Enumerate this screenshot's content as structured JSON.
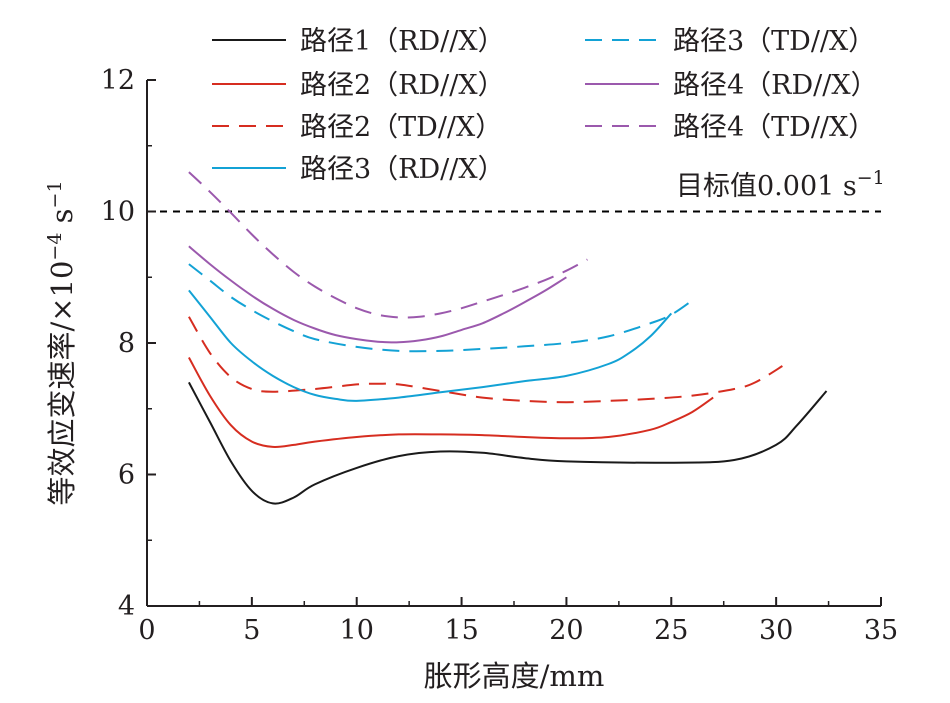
{
  "chart_data": {
    "type": "line",
    "xlabel": "胀形高度/mm",
    "ylabel_main": "等效应变速率/×10",
    "ylabel_exp": "−4",
    "ylabel_unit": " s",
    "ylabel_unit_exp": "−1",
    "xlim": [
      0,
      35
    ],
    "ylim": [
      4,
      12
    ],
    "x_ticks": [
      0,
      5,
      10,
      15,
      20,
      25,
      30,
      35
    ],
    "y_ticks": [
      4,
      6,
      8,
      10,
      12
    ],
    "grid": false,
    "legend_position": "top",
    "reference_line": {
      "y": 10,
      "label": "目标值0.001 s",
      "label_exp": "−1",
      "color": "#000000",
      "dash": "dashed"
    },
    "series": [
      {
        "name": "路径1（RD//X）",
        "color": "#1a1a1a",
        "dash": "solid",
        "points": [
          [
            2,
            7.4
          ],
          [
            3,
            6.8
          ],
          [
            4,
            6.2
          ],
          [
            5,
            5.75
          ],
          [
            6,
            5.56
          ],
          [
            7,
            5.65
          ],
          [
            8,
            5.85
          ],
          [
            10,
            6.1
          ],
          [
            12,
            6.28
          ],
          [
            14,
            6.35
          ],
          [
            16,
            6.33
          ],
          [
            18,
            6.25
          ],
          [
            20,
            6.2
          ],
          [
            25,
            6.18
          ],
          [
            28,
            6.22
          ],
          [
            30,
            6.45
          ],
          [
            31,
            6.75
          ],
          [
            32.4,
            7.27
          ]
        ]
      },
      {
        "name": "路径2（RD//X）",
        "color": "#d62d20",
        "dash": "solid",
        "points": [
          [
            2,
            7.78
          ],
          [
            3,
            7.2
          ],
          [
            4,
            6.75
          ],
          [
            5,
            6.5
          ],
          [
            6,
            6.42
          ],
          [
            7,
            6.45
          ],
          [
            8,
            6.5
          ],
          [
            10,
            6.57
          ],
          [
            12,
            6.61
          ],
          [
            14,
            6.61
          ],
          [
            16,
            6.6
          ],
          [
            18,
            6.57
          ],
          [
            20,
            6.55
          ],
          [
            22,
            6.57
          ],
          [
            24,
            6.68
          ],
          [
            25,
            6.8
          ],
          [
            26,
            6.95
          ],
          [
            27,
            7.17
          ]
        ]
      },
      {
        "name": "路径2（TD//X）",
        "color": "#d62d20",
        "dash": "dashed",
        "points": [
          [
            2,
            8.4
          ],
          [
            3,
            7.85
          ],
          [
            4,
            7.48
          ],
          [
            5,
            7.3
          ],
          [
            6,
            7.26
          ],
          [
            8,
            7.3
          ],
          [
            10,
            7.37
          ],
          [
            11,
            7.38
          ],
          [
            12,
            7.37
          ],
          [
            14,
            7.27
          ],
          [
            16,
            7.17
          ],
          [
            18,
            7.12
          ],
          [
            20,
            7.1
          ],
          [
            22,
            7.12
          ],
          [
            24,
            7.15
          ],
          [
            26,
            7.2
          ],
          [
            28,
            7.3
          ],
          [
            29,
            7.4
          ],
          [
            30.3,
            7.65
          ]
        ]
      },
      {
        "name": "路径3（RD//X）",
        "color": "#13a2d5",
        "dash": "solid",
        "points": [
          [
            2,
            8.8
          ],
          [
            3,
            8.4
          ],
          [
            4,
            8.0
          ],
          [
            5,
            7.72
          ],
          [
            6,
            7.5
          ],
          [
            7,
            7.33
          ],
          [
            8,
            7.21
          ],
          [
            9,
            7.15
          ],
          [
            10,
            7.12
          ],
          [
            12,
            7.17
          ],
          [
            14,
            7.25
          ],
          [
            16,
            7.33
          ],
          [
            18,
            7.42
          ],
          [
            20,
            7.5
          ],
          [
            22,
            7.68
          ],
          [
            23,
            7.85
          ],
          [
            24,
            8.1
          ],
          [
            25,
            8.45
          ]
        ]
      },
      {
        "name": "路径3（TD//X）",
        "color": "#13a2d5",
        "dash": "dashed",
        "points": [
          [
            2,
            9.2
          ],
          [
            3,
            8.95
          ],
          [
            4,
            8.7
          ],
          [
            5,
            8.5
          ],
          [
            6,
            8.33
          ],
          [
            7,
            8.18
          ],
          [
            8,
            8.06
          ],
          [
            10,
            7.94
          ],
          [
            12,
            7.88
          ],
          [
            14,
            7.88
          ],
          [
            16,
            7.91
          ],
          [
            18,
            7.95
          ],
          [
            20,
            8.0
          ],
          [
            22,
            8.1
          ],
          [
            24,
            8.3
          ],
          [
            25,
            8.43
          ],
          [
            26.1,
            8.67
          ]
        ]
      },
      {
        "name": "路径4（RD//X）",
        "color": "#9b59ad",
        "dash": "solid",
        "points": [
          [
            2,
            9.47
          ],
          [
            3,
            9.2
          ],
          [
            4,
            8.95
          ],
          [
            5,
            8.72
          ],
          [
            6,
            8.52
          ],
          [
            7,
            8.35
          ],
          [
            8,
            8.22
          ],
          [
            9,
            8.12
          ],
          [
            10,
            8.06
          ],
          [
            11,
            8.02
          ],
          [
            12,
            8.01
          ],
          [
            13,
            8.04
          ],
          [
            14,
            8.1
          ],
          [
            15,
            8.2
          ],
          [
            16,
            8.3
          ],
          [
            17,
            8.45
          ],
          [
            18,
            8.62
          ],
          [
            19,
            8.8
          ],
          [
            20,
            9.0
          ]
        ]
      },
      {
        "name": "路径4（TD//X）",
        "color": "#9b59ad",
        "dash": "dashed",
        "points": [
          [
            2,
            10.6
          ],
          [
            3,
            10.3
          ],
          [
            4,
            9.98
          ],
          [
            5,
            9.65
          ],
          [
            6,
            9.35
          ],
          [
            7,
            9.08
          ],
          [
            8,
            8.86
          ],
          [
            9,
            8.68
          ],
          [
            10,
            8.53
          ],
          [
            11,
            8.43
          ],
          [
            12,
            8.39
          ],
          [
            13,
            8.4
          ],
          [
            14,
            8.45
          ],
          [
            15,
            8.53
          ],
          [
            16,
            8.63
          ],
          [
            17,
            8.73
          ],
          [
            18,
            8.84
          ],
          [
            19,
            8.96
          ],
          [
            20,
            9.1
          ],
          [
            21,
            9.27
          ]
        ]
      }
    ]
  }
}
